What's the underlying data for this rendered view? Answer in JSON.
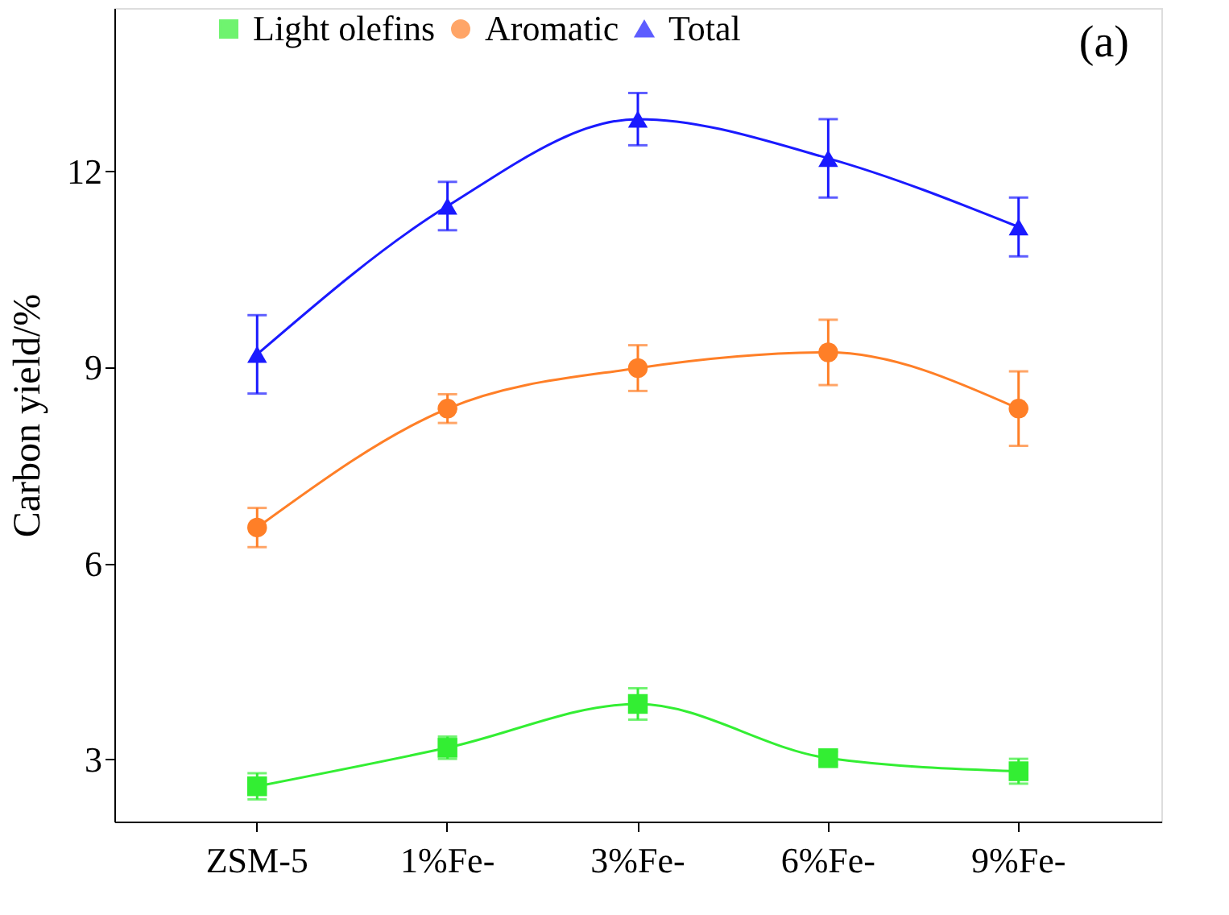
{
  "chart_data": {
    "type": "line",
    "ylabel": "Carbon yield/%",
    "categories": [
      "ZSM-5",
      "1%Fe-",
      "3%Fe-",
      "6%Fe-",
      "9%Fe-"
    ],
    "series": [
      {
        "name": "Light olefins",
        "color": "#33ee33",
        "marker": "square",
        "values": [
          2.59,
          3.18,
          3.85,
          3.02,
          2.82
        ],
        "errors": [
          0.2,
          0.17,
          0.24,
          0.1,
          0.19
        ]
      },
      {
        "name": "Aromatic",
        "color": "#ff7f27",
        "marker": "circle",
        "values": [
          6.55,
          8.37,
          8.99,
          9.23,
          8.37
        ],
        "errors": [
          0.3,
          0.22,
          0.35,
          0.5,
          0.57
        ]
      },
      {
        "name": "Total",
        "color": "#1a1aff",
        "marker": "triangle",
        "values": [
          9.2,
          11.47,
          12.8,
          12.2,
          11.15
        ],
        "errors": [
          0.6,
          0.37,
          0.4,
          0.6,
          0.45
        ]
      }
    ],
    "ylim": [
      2.05,
      14.5
    ],
    "yticks": [
      3,
      6,
      9,
      12
    ],
    "annotations": [
      "(a)"
    ],
    "legend": "top",
    "grid": false,
    "line_style": "solid"
  }
}
